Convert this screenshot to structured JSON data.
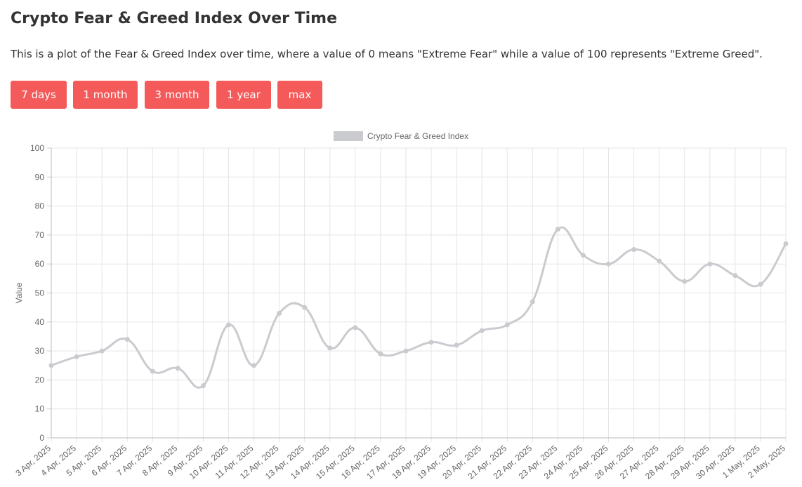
{
  "title": "Crypto Fear & Greed Index Over Time",
  "description": "This is a plot of the Fear & Greed Index over time, where a value of 0 means \"Extreme Fear\" while a value of 100 represents \"Extreme Greed\".",
  "buttons": [
    "7 days",
    "1 month",
    "3 month",
    "1 year",
    "max"
  ],
  "chart_data": {
    "type": "line",
    "y_label": "Value",
    "categories": [
      "3 Apr, 2025",
      "4 Apr, 2025",
      "5 Apr, 2025",
      "6 Apr, 2025",
      "7 Apr, 2025",
      "8 Apr, 2025",
      "9 Apr, 2025",
      "10 Apr, 2025",
      "11 Apr, 2025",
      "12 Apr, 2025",
      "13 Apr, 2025",
      "14 Apr, 2025",
      "15 Apr, 2025",
      "16 Apr, 2025",
      "17 Apr, 2025",
      "18 Apr, 2025",
      "19 Apr, 2025",
      "20 Apr, 2025",
      "21 Apr, 2025",
      "22 Apr, 2025",
      "23 Apr, 2025",
      "24 Apr, 2025",
      "25 Apr, 2025",
      "26 Apr, 2025",
      "27 Apr, 2025",
      "28 Apr, 2025",
      "29 Apr, 2025",
      "30 Apr, 2025",
      "1 May, 2025",
      "2 May, 2025"
    ],
    "series": [
      {
        "name": "Crypto Fear & Greed Index",
        "color": "#c9cbcf",
        "values": [
          25,
          28,
          30,
          34,
          23,
          24,
          18,
          39,
          25,
          43,
          45,
          31,
          38,
          29,
          30,
          33,
          32,
          37,
          39,
          47,
          72,
          63,
          60,
          65,
          61,
          54,
          60,
          56,
          53,
          67
        ]
      }
    ],
    "ylim": [
      0,
      100
    ],
    "yticks": [
      0,
      10,
      20,
      30,
      40,
      50,
      60,
      70,
      80,
      90,
      100
    ],
    "grid": true,
    "legend": "top"
  }
}
